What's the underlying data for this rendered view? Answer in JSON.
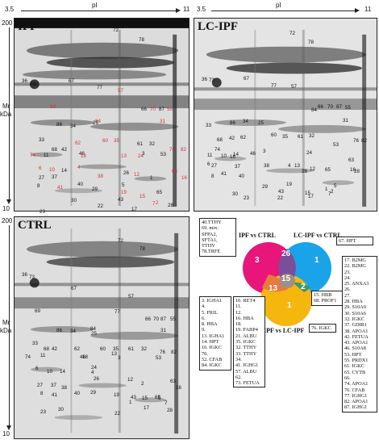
{
  "axes": {
    "pi_label": "pI",
    "pi_start": "3.5",
    "pi_end": "11",
    "mr_label_line1": "Mr",
    "mr_label_line2": "kDa",
    "mr_top": "200",
    "mr_bottom": "10"
  },
  "gels": {
    "ipf": {
      "title": "IPF",
      "mr_top": "200",
      "mr_bottom": "10"
    },
    "lcipf": {
      "title": "LC-IPF"
    },
    "ctrl": {
      "title": "CTRL",
      "mr_top": "200",
      "mr_bottom": "10"
    }
  },
  "ipf_labels": [
    {
      "t": "72",
      "c": "k"
    },
    {
      "t": "78",
      "c": "k"
    },
    {
      "t": "36",
      "c": "k"
    },
    {
      "t": "73",
      "c": "k"
    },
    {
      "t": "67",
      "c": "k"
    },
    {
      "t": "77",
      "c": "k"
    },
    {
      "t": "57",
      "c": "r"
    },
    {
      "t": "69",
      "c": "r"
    },
    {
      "t": "66",
      "c": "k"
    },
    {
      "t": "70",
      "c": "r"
    },
    {
      "t": "87",
      "c": "k"
    },
    {
      "t": "55",
      "c": "r"
    },
    {
      "t": "84",
      "c": "r"
    },
    {
      "t": "31",
      "c": "r"
    },
    {
      "t": "86",
      "c": "k"
    },
    {
      "t": "34",
      "c": "k"
    },
    {
      "t": "25",
      "c": "k"
    },
    {
      "t": "33",
      "c": "k"
    },
    {
      "t": "68",
      "c": "k"
    },
    {
      "t": "42",
      "c": "k"
    },
    {
      "t": "62",
      "c": "r"
    },
    {
      "t": "60",
      "c": "r"
    },
    {
      "t": "35",
      "c": "r"
    },
    {
      "t": "61",
      "c": "k"
    },
    {
      "t": "32",
      "c": "k"
    },
    {
      "t": "76",
      "c": "r"
    },
    {
      "t": "82",
      "c": "r"
    },
    {
      "t": "74",
      "c": "r"
    },
    {
      "t": "11",
      "c": "k"
    },
    {
      "t": "46",
      "c": "k"
    },
    {
      "t": "18",
      "c": "r"
    },
    {
      "t": "13",
      "c": "r"
    },
    {
      "t": "24",
      "c": "r"
    },
    {
      "t": "3",
      "c": "k"
    },
    {
      "t": "53",
      "c": "k"
    },
    {
      "t": "6",
      "c": "r"
    },
    {
      "t": "10",
      "c": "r"
    },
    {
      "t": "14",
      "c": "k"
    },
    {
      "t": "4",
      "c": "r"
    },
    {
      "t": "26",
      "c": "k"
    },
    {
      "t": "27",
      "c": "k"
    },
    {
      "t": "37",
      "c": "k"
    },
    {
      "t": "38",
      "c": "r"
    },
    {
      "t": "12",
      "c": "r"
    },
    {
      "t": "63",
      "c": "r"
    },
    {
      "t": "16",
      "c": "r"
    },
    {
      "t": "8",
      "c": "k"
    },
    {
      "t": "41",
      "c": "r"
    },
    {
      "t": "40",
      "c": "k"
    },
    {
      "t": "29",
      "c": "k"
    },
    {
      "t": "19",
      "c": "r"
    },
    {
      "t": "15",
      "c": "r"
    },
    {
      "t": "65",
      "c": "k"
    },
    {
      "t": "2",
      "c": "r"
    },
    {
      "t": "30",
      "c": "k"
    },
    {
      "t": "22",
      "c": "k"
    },
    {
      "t": "43",
      "c": "k"
    },
    {
      "t": "17",
      "c": "k"
    },
    {
      "t": "7",
      "c": "r"
    },
    {
      "t": "28",
      "c": "k"
    },
    {
      "t": "23",
      "c": "k"
    },
    {
      "t": "5",
      "c": "k"
    },
    {
      "t": "1",
      "c": "k"
    }
  ],
  "lcipf_labels": [
    "72",
    "78",
    "36",
    "73",
    "67",
    "77",
    "57",
    "66",
    "70",
    "87",
    "55",
    "84",
    "31",
    "86",
    "34",
    "33",
    "68",
    "42",
    "62",
    "60",
    "35",
    "61",
    "32",
    "25",
    "76",
    "82",
    "74",
    "18",
    "46",
    "53",
    "6",
    "11",
    "10",
    "14",
    "3",
    "24",
    "27",
    "37",
    "13",
    "38",
    "26",
    "4",
    "63",
    "12",
    "16",
    "8",
    "41",
    "40",
    "29",
    "19",
    "43",
    "15",
    "65",
    "2",
    "28",
    "17",
    "7",
    "30",
    "23",
    "22",
    "1",
    "5"
  ],
  "ctrl_labels": [
    "72",
    "78",
    "36",
    "73",
    "67",
    "57",
    "69",
    "77",
    "66",
    "70",
    "87",
    "55",
    "84",
    "31",
    "86",
    "34",
    "25",
    "33",
    "68",
    "42",
    "62",
    "60",
    "35",
    "61",
    "32",
    "76",
    "82",
    "74",
    "11",
    "18",
    "46",
    "13",
    "3",
    "53",
    "6",
    "10",
    "14",
    "24",
    "4",
    "27",
    "37",
    "38",
    "26",
    "12",
    "63",
    "16",
    "8",
    "41",
    "40",
    "29",
    "19",
    "43",
    "15",
    "65",
    "2",
    "17",
    "7",
    "28",
    "23",
    "30",
    "22",
    "1",
    "5"
  ],
  "venn": {
    "ipf_vs_ctrl": "IPF vs CTRL",
    "lcipf_vs_ctrl": "LC-IPF vs CTRL",
    "ipf_vs_lcipf": "IPF vs LC-IPF",
    "only_ipf_ctrl": "3",
    "only_lcipf_ctrl": "1",
    "only_ipf_lcipf": "1",
    "ipf_ctrl_and_lcipf_ctrl": "26",
    "ipf_ctrl_and_ipf_lcipf": "13",
    "lcipf_ctrl_and_ipf_lcipf": "2",
    "all_three": "15",
    "colors": {
      "pink": "#e8157a",
      "blue": "#1aa3e8",
      "yellow": "#f5b60d",
      "purple": "#7a4f9a",
      "orange": "#e77b3e",
      "green": "#3a9a6a",
      "gray": "#9e8f87"
    }
  },
  "boxes": {
    "top_left": [
      "40.TTHY",
      "69. mix:",
      "SFPA2,",
      "SFTA1,",
      "TTHY",
      "78.TRFE"
    ],
    "top_right": [
      "67. HPT"
    ],
    "left_list": [
      "3.  IGHA1",
      "4.",
      "5.  FRIL",
      "6.",
      "8.  HBA",
      "9.",
      "13. IGHA1",
      "14. HPT",
      "16. IGKC",
      "70.",
      "52. CFAB",
      "84. IGKC"
    ],
    "mid_list": [
      "10. RET4",
      "11.",
      "12.",
      "16. HBA",
      "18.",
      "19. FABP4",
      "21. ALBU",
      "35. IGKC",
      "32. TTHY",
      "33. TTHY",
      "34.",
      "41. IGHG1",
      "57. ALBU",
      "62.",
      "73. FETUA"
    ],
    "hbb_box": [
      "15. HBB",
      "68. PROF1"
    ],
    "igkc_box": [
      "76. IGKC"
    ],
    "right_list": [
      "17. B2MG",
      "22. B2MG",
      "23.",
      "24.",
      "25.  ANXA3",
      "26.",
      "27.",
      "28.  HBA",
      "29.  S10A9",
      "30.  S10A6",
      "32.  IGKC",
      "37.  GDIR1",
      "38.  APOA1",
      "42.  FETUA",
      "43.  APOA1",
      "46.  S10A8",
      "53.  HPT",
      "55.  PRDX1",
      "61.  IGKC",
      "65.  CYTB",
      "66.",
      "74.  APOA1",
      "76.  CFAB",
      "77.  IGHG1",
      "82.  APOA1",
      "87.  IGHG1"
    ]
  }
}
